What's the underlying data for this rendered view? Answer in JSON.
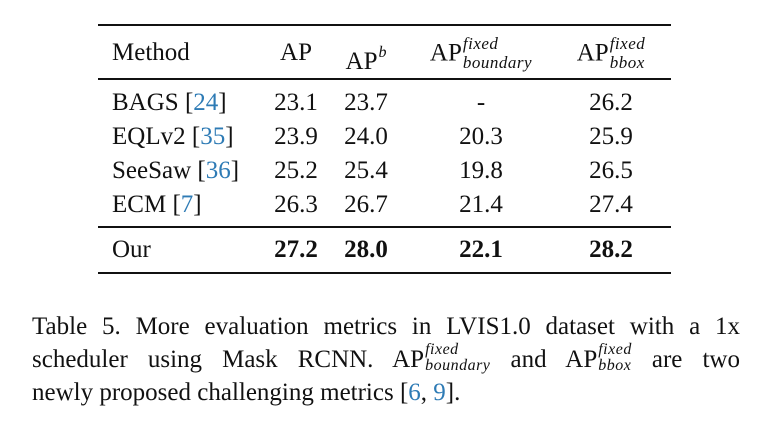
{
  "table": {
    "headers": {
      "method": "Method",
      "ap": "AP",
      "apb_base": "AP",
      "apb_sup": "b",
      "apfb_base": "AP",
      "apfb_sup": "fixed",
      "apfb_sub": "boundary",
      "apfbb_base": "AP",
      "apfbb_sup": "fixed",
      "apfbb_sub": "bbox"
    },
    "rows": [
      {
        "method": "BAGS ",
        "ref": "24",
        "ap": "23.1",
        "apb": "23.7",
        "ap_boundary": "-",
        "ap_bbox": "26.2"
      },
      {
        "method": "EQLv2 ",
        "ref": "35",
        "ap": "23.9",
        "apb": "24.0",
        "ap_boundary": "20.3",
        "ap_bbox": "25.9"
      },
      {
        "method": "SeeSaw ",
        "ref": "36",
        "ap": "25.2",
        "apb": "25.4",
        "ap_boundary": "19.8",
        "ap_bbox": "26.5"
      },
      {
        "method": "ECM ",
        "ref": "7",
        "ap": "26.3",
        "apb": "26.7",
        "ap_boundary": "21.4",
        "ap_bbox": "27.4"
      }
    ],
    "ours": {
      "method": "Our",
      "ap": "27.2",
      "apb": "28.0",
      "ap_boundary": "22.1",
      "ap_bbox": "28.2"
    }
  },
  "caption": {
    "line1": "Table 5.  More evaluation metrics in LVIS1.0 dataset with a 1x",
    "line2_a": "scheduler using Mask RCNN. AP",
    "sup_fixed": "fixed",
    "sub_boundary": "boundary",
    "line2_b": " and AP",
    "sub_bbox": "bbox",
    "line2_c": " are two",
    "line3_a": "newly proposed challenging metrics [",
    "ref1": "6",
    "sep": ", ",
    "ref2": "9",
    "line3_b": "]."
  }
}
